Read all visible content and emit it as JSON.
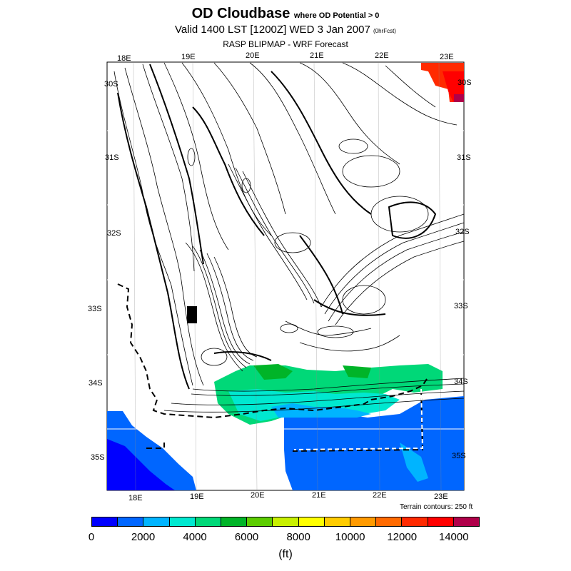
{
  "title": {
    "main": "OD Cloudbase",
    "main_sub": "where OD Potential > 0",
    "valid": "Valid 1400 LST [1200Z] WED 3 Jan 2007",
    "valid_sub": "(0hrFcst)",
    "model": "RASP BLIPMAP - WRF Forecast"
  },
  "map": {
    "top_lon_labels": [
      "18E",
      "19E",
      "20E",
      "21E",
      "22E",
      "23E"
    ],
    "bottom_lon_labels": [
      "18E",
      "19E",
      "20E",
      "21E",
      "22E",
      "23E"
    ],
    "left_lat_labels": [
      "30S",
      "31S",
      "32S",
      "33S",
      "34S",
      "35S"
    ],
    "right_lat_labels": [
      "30S",
      "31S",
      "32S",
      "33S",
      "34S",
      "35S"
    ],
    "terrain_note": "Terrain contours: 250 ft"
  },
  "colorbar": {
    "colors": [
      "#0000ff",
      "#0066ff",
      "#00b4ff",
      "#00e8d0",
      "#00d878",
      "#00b428",
      "#5ccc00",
      "#c8f000",
      "#ffff00",
      "#ffcc00",
      "#ff9a00",
      "#ff6a00",
      "#ff2a00",
      "#ff0000",
      "#b0004a"
    ],
    "ticks": [
      "0",
      "2000",
      "4000",
      "6000",
      "8000",
      "10000",
      "12000",
      "14000"
    ],
    "units": "(ft)"
  }
}
